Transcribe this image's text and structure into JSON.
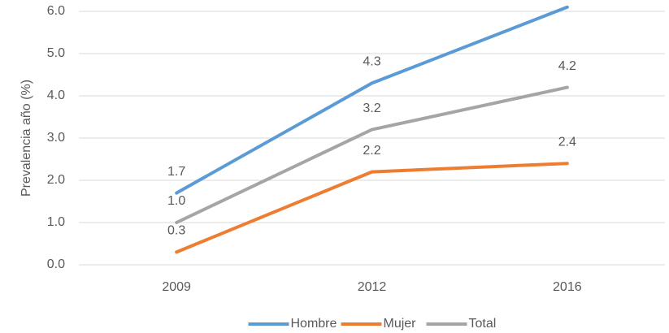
{
  "chart_data": {
    "type": "line",
    "y_label": "Prevalencia año (%)",
    "categories": [
      "2009",
      "2012",
      "2016"
    ],
    "series": [
      {
        "name": "Hombre",
        "color": "#5b9bd5",
        "values": [
          1.7,
          4.3,
          6.1
        ],
        "value_labels": [
          "1.7",
          "4.3",
          null
        ]
      },
      {
        "name": "Mujer",
        "color": "#ed7d31",
        "values": [
          0.3,
          2.2,
          2.4
        ],
        "value_labels": [
          "0.3",
          "2.2",
          "2.4"
        ]
      },
      {
        "name": "Total",
        "color": "#a5a5a5",
        "values": [
          1.0,
          3.2,
          4.2
        ],
        "value_labels": [
          "1.0",
          "3.2",
          "4.2"
        ]
      }
    ],
    "ylim": [
      0,
      6
    ],
    "yticks": [
      {
        "value": 0,
        "label": "0.0"
      },
      {
        "value": 1,
        "label": "1.0"
      },
      {
        "value": 2,
        "label": "2.0"
      },
      {
        "value": 3,
        "label": "3.0"
      },
      {
        "value": 4,
        "label": "4.0"
      },
      {
        "value": 5,
        "label": "5.0"
      },
      {
        "value": 6,
        "label": "6.0"
      }
    ],
    "grid": true,
    "legend": "bottom"
  }
}
